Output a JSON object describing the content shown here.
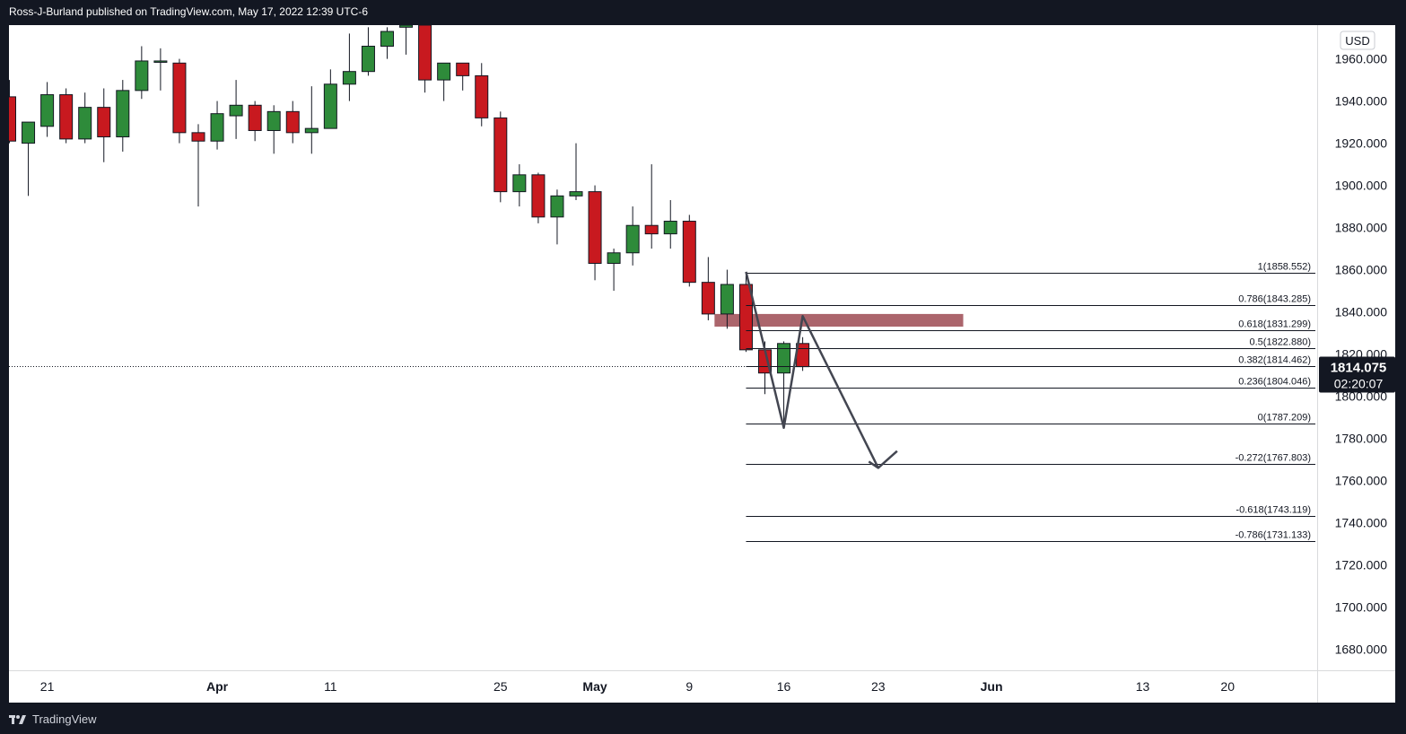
{
  "header": {
    "text": "Ross-J-Burland published on TradingView.com, May 17, 2022 12:39 UTC-6"
  },
  "footer": {
    "brand": "TradingView"
  },
  "colors": {
    "up": "#2e8b3a",
    "down": "#c8191f",
    "background": "#ffffff",
    "frame": "#131722",
    "line": "#131722",
    "zone": "#9c4a52"
  },
  "chart_data": {
    "type": "candlestick",
    "currency": "USD",
    "ylim": [
      1670,
      1976
    ],
    "y_ticks": [
      1680,
      1700,
      1720,
      1740,
      1760,
      1780,
      1800,
      1820,
      1840,
      1860,
      1880,
      1900,
      1920,
      1940,
      1960
    ],
    "y_tick_labels": [
      "1680.000",
      "1700.000",
      "1720.000",
      "1740.000",
      "1760.000",
      "1780.000",
      "1800.000",
      "1820.000",
      "1840.000",
      "1860.000",
      "1880.000",
      "1900.000",
      "1920.000",
      "1940.000",
      "1960.000"
    ],
    "x_labels": [
      {
        "label": "21",
        "date": "2022-03-21",
        "bold": false
      },
      {
        "label": "Apr",
        "date": "2022-04-01",
        "bold": true
      },
      {
        "label": "11",
        "date": "2022-04-11",
        "bold": false
      },
      {
        "label": "25",
        "date": "2022-04-25",
        "bold": false
      },
      {
        "label": "May",
        "date": "2022-05-02",
        "bold": true
      },
      {
        "label": "9",
        "date": "2022-05-09",
        "bold": false
      },
      {
        "label": "16",
        "date": "2022-05-16",
        "bold": false
      },
      {
        "label": "23",
        "date": "2022-05-23",
        "bold": false
      },
      {
        "label": "Jun",
        "date": "2022-06-01",
        "bold": true
      },
      {
        "label": "13",
        "date": "2022-06-13",
        "bold": false
      },
      {
        "label": "20",
        "date": "2022-06-20",
        "bold": false
      }
    ],
    "candles": [
      {
        "d": "2022-03-17",
        "o": 1942,
        "h": 1950,
        "l": 1920,
        "c": 1921
      },
      {
        "d": "2022-03-18",
        "o": 1920,
        "h": 1929,
        "l": 1895,
        "c": 1930
      },
      {
        "d": "2022-03-21",
        "o": 1928,
        "h": 1949,
        "l": 1923,
        "c": 1943
      },
      {
        "d": "2022-03-22",
        "o": 1943,
        "h": 1946,
        "l": 1920,
        "c": 1922
      },
      {
        "d": "2022-03-23",
        "o": 1922,
        "h": 1944,
        "l": 1920,
        "c": 1937
      },
      {
        "d": "2022-03-24",
        "o": 1937,
        "h": 1946,
        "l": 1911,
        "c": 1923
      },
      {
        "d": "2022-03-25",
        "o": 1923,
        "h": 1950,
        "l": 1916,
        "c": 1945
      },
      {
        "d": "2022-03-28",
        "o": 1945,
        "h": 1966,
        "l": 1941,
        "c": 1959
      },
      {
        "d": "2022-03-29",
        "o": 1959,
        "h": 1965,
        "l": 1945,
        "c": 1959
      },
      {
        "d": "2022-03-30",
        "o": 1958,
        "h": 1960,
        "l": 1920,
        "c": 1925
      },
      {
        "d": "2022-03-31",
        "o": 1925,
        "h": 1929,
        "l": 1890,
        "c": 1921
      },
      {
        "d": "2022-04-01",
        "o": 1921,
        "h": 1940,
        "l": 1917,
        "c": 1934
      },
      {
        "d": "2022-04-04",
        "o": 1933,
        "h": 1950,
        "l": 1922,
        "c": 1938
      },
      {
        "d": "2022-04-05",
        "o": 1938,
        "h": 1940,
        "l": 1921,
        "c": 1926
      },
      {
        "d": "2022-04-06",
        "o": 1926,
        "h": 1938,
        "l": 1915,
        "c": 1935
      },
      {
        "d": "2022-04-07",
        "o": 1935,
        "h": 1940,
        "l": 1920,
        "c": 1925
      },
      {
        "d": "2022-04-08",
        "o": 1925,
        "h": 1947,
        "l": 1915,
        "c": 1927
      },
      {
        "d": "2022-04-11",
        "o": 1927,
        "h": 1955,
        "l": 1927,
        "c": 1948
      },
      {
        "d": "2022-04-12",
        "o": 1948,
        "h": 1972,
        "l": 1940,
        "c": 1954
      },
      {
        "d": "2022-04-13",
        "o": 1954,
        "h": 1975,
        "l": 1952,
        "c": 1966
      },
      {
        "d": "2022-04-14",
        "o": 1966,
        "h": 1975,
        "l": 1960,
        "c": 1973
      },
      {
        "d": "2022-04-18",
        "o": 1975,
        "h": 1986,
        "l": 1962,
        "c": 1976
      },
      {
        "d": "2022-04-19",
        "o": 1976,
        "h": 1980,
        "l": 1944,
        "c": 1950
      },
      {
        "d": "2022-04-20",
        "o": 1950,
        "h": 1958,
        "l": 1940,
        "c": 1958
      },
      {
        "d": "2022-04-21",
        "o": 1958,
        "h": 1958,
        "l": 1945,
        "c": 1952
      },
      {
        "d": "2022-04-22",
        "o": 1952,
        "h": 1958,
        "l": 1928,
        "c": 1932
      },
      {
        "d": "2022-04-25",
        "o": 1932,
        "h": 1935,
        "l": 1892,
        "c": 1897
      },
      {
        "d": "2022-04-26",
        "o": 1897,
        "h": 1910,
        "l": 1890,
        "c": 1905
      },
      {
        "d": "2022-04-27",
        "o": 1905,
        "h": 1906,
        "l": 1882,
        "c": 1885
      },
      {
        "d": "2022-04-28",
        "o": 1885,
        "h": 1898,
        "l": 1872,
        "c": 1895
      },
      {
        "d": "2022-04-29",
        "o": 1895,
        "h": 1920,
        "l": 1893,
        "c": 1897
      },
      {
        "d": "2022-05-02",
        "o": 1897,
        "h": 1900,
        "l": 1855,
        "c": 1863
      },
      {
        "d": "2022-05-03",
        "o": 1863,
        "h": 1870,
        "l": 1850,
        "c": 1868
      },
      {
        "d": "2022-05-04",
        "o": 1868,
        "h": 1890,
        "l": 1862,
        "c": 1881
      },
      {
        "d": "2022-05-05",
        "o": 1881,
        "h": 1910,
        "l": 1870,
        "c": 1877
      },
      {
        "d": "2022-05-06",
        "o": 1877,
        "h": 1893,
        "l": 1870,
        "c": 1883
      },
      {
        "d": "2022-05-09",
        "o": 1883,
        "h": 1886,
        "l": 1852,
        "c": 1854
      },
      {
        "d": "2022-05-10",
        "o": 1854,
        "h": 1866,
        "l": 1836,
        "c": 1839
      },
      {
        "d": "2022-05-11",
        "o": 1839,
        "h": 1860,
        "l": 1832,
        "c": 1853
      },
      {
        "d": "2022-05-12",
        "o": 1853,
        "h": 1858,
        "l": 1821,
        "c": 1822
      },
      {
        "d": "2022-05-13",
        "o": 1822,
        "h": 1826,
        "l": 1801,
        "c": 1811
      },
      {
        "d": "2022-05-16",
        "o": 1811,
        "h": 1826,
        "l": 1787,
        "c": 1825
      },
      {
        "d": "2022-05-17",
        "o": 1825,
        "h": 1828,
        "l": 1812,
        "c": 1814
      }
    ],
    "last_price": "1814.075",
    "countdown": "02:20:07",
    "fib_levels": [
      {
        "label": "1(1858.552)",
        "value": 1858.552
      },
      {
        "label": "0.786(1843.285)",
        "value": 1843.285
      },
      {
        "label": "0.618(1831.299)",
        "value": 1831.299
      },
      {
        "label": "0.5(1822.880)",
        "value": 1822.88
      },
      {
        "label": "0.382(1814.462)",
        "value": 1814.462
      },
      {
        "label": "0.236(1804.046)",
        "value": 1804.046
      },
      {
        "label": "0(1787.209)",
        "value": 1787.209
      },
      {
        "label": "-0.272(1767.803)",
        "value": 1767.803
      },
      {
        "label": "-0.618(1743.119)",
        "value": 1743.119
      },
      {
        "label": "-0.786(1731.133)",
        "value": 1731.133
      }
    ],
    "fib_start_date": "2022-05-12",
    "fib_end_date": "2022-05-31",
    "zone": {
      "from_date": "2022-05-10",
      "to_date": "2022-05-29",
      "low": 1833,
      "high": 1839
    },
    "projection_path": [
      {
        "d": "2022-05-12",
        "p": 1859
      },
      {
        "d": "2022-05-16",
        "p": 1785
      },
      {
        "d": "2022-05-17",
        "p": 1838
      },
      {
        "d": "2022-05-23",
        "p": 1766
      }
    ],
    "arrow_head": [
      {
        "d": "2022-05-22",
        "p": 1769
      },
      {
        "d": "2022-05-23",
        "p": 1766
      },
      {
        "d": "2022-05-24",
        "p": 1774
      }
    ]
  }
}
